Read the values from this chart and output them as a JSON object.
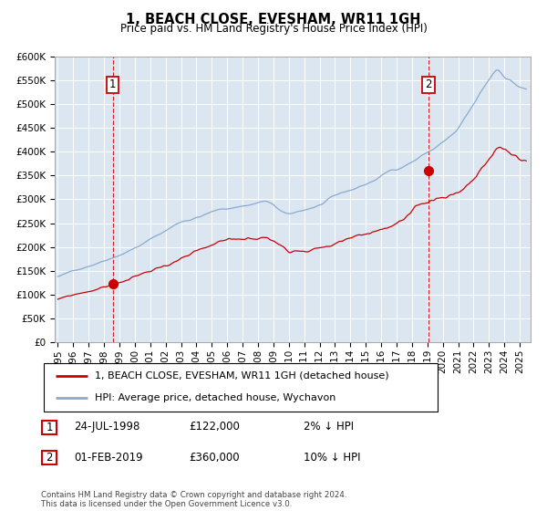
{
  "title": "1, BEACH CLOSE, EVESHAM, WR11 1GH",
  "subtitle": "Price paid vs. HM Land Registry's House Price Index (HPI)",
  "legend_line1": "1, BEACH CLOSE, EVESHAM, WR11 1GH (detached house)",
  "legend_line2": "HPI: Average price, detached house, Wychavon",
  "annotation1_date": "24-JUL-1998",
  "annotation1_price": "£122,000",
  "annotation1_hpi": "2% ↓ HPI",
  "annotation2_date": "01-FEB-2019",
  "annotation2_price": "£360,000",
  "annotation2_hpi": "10% ↓ HPI",
  "footnote": "Contains HM Land Registry data © Crown copyright and database right 2024.\nThis data is licensed under the Open Government Licence v3.0.",
  "background_color": "#dce6f1",
  "line_color_red": "#cc0000",
  "line_color_blue": "#88aad0",
  "annotation_line_color": "#cc0000",
  "ylim": [
    0,
    600000
  ],
  "yticks": [
    0,
    50000,
    100000,
    150000,
    200000,
    250000,
    300000,
    350000,
    400000,
    450000,
    500000,
    550000,
    600000
  ],
  "sale1_x": 1998.56,
  "sale1_y": 122000,
  "sale2_x": 2019.08,
  "sale2_y": 360000,
  "xmin": 1994.8,
  "xmax": 2025.7
}
